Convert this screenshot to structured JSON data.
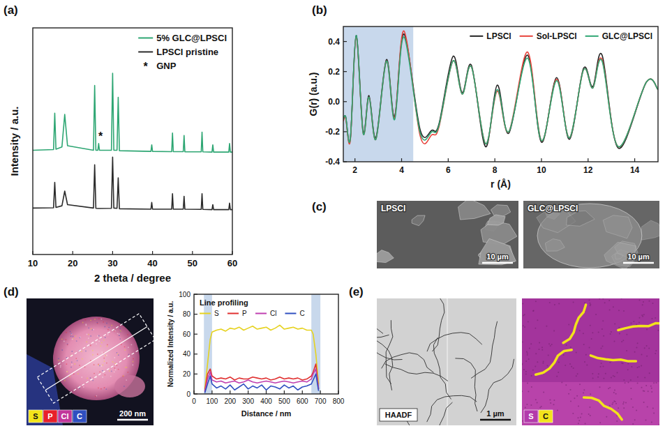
{
  "chart_data": [
    {
      "panel_label": "(a)",
      "type": "line",
      "x_label": "2 theta / degree",
      "y_label": "Intensity / a.u.",
      "xlim": [
        10,
        60
      ],
      "ylim": [
        0,
        100
      ],
      "xticks": [
        10,
        20,
        30,
        40,
        50,
        60
      ],
      "tick_labels": "x",
      "grid": false,
      "legend": "upper right",
      "line_style": "solid",
      "x": [
        10,
        15.2,
        15.5,
        15.8,
        17.3,
        18.0,
        18.7,
        25.2,
        25.5,
        25.8,
        26.3,
        26.5,
        26.7,
        29.7,
        30.0,
        30.3,
        31.1,
        31.4,
        31.7,
        39.6,
        39.8,
        40.0,
        44.8,
        45.0,
        45.2,
        47.7,
        47.9,
        48.1,
        52.2,
        52.4,
        52.6,
        54.9,
        55.1,
        55.3,
        59.1,
        59.3,
        59.5,
        60
      ],
      "series": [
        {
          "name": "5% GLC@LPSCl",
          "color": "#2ea673",
          "values": [
            46,
            46.3,
            62.4,
            46.5,
            47.5,
            61.8,
            48,
            46,
            74.6,
            46,
            46,
            49,
            46,
            46,
            80,
            46,
            46,
            69.4,
            45.8,
            45.5,
            48.4,
            45.5,
            45.4,
            53.6,
            45.4,
            45.4,
            52.5,
            45.3,
            45.3,
            54,
            45.3,
            45.2,
            48.4,
            45.2,
            45.2,
            49,
            45.2,
            45.2
          ]
        },
        {
          "name": "LPSCl pristine",
          "color": "#2b2b2b",
          "values": [
            20.5,
            20.6,
            31.8,
            20.8,
            21.5,
            28,
            22,
            20.5,
            39.6,
            20.4,
            20.3,
            20.3,
            20.3,
            20.4,
            43,
            20.5,
            20.4,
            33.8,
            20.2,
            20,
            23,
            20,
            20,
            26.8,
            20,
            20,
            25.7,
            20,
            19.9,
            26.8,
            19.9,
            19.8,
            22,
            19.8,
            19.8,
            22.7,
            19.8,
            19.8
          ]
        }
      ],
      "legend_note": {
        "symbol": "*",
        "text": "GNP"
      },
      "annotations": [
        {
          "text": "*",
          "x": 27.0,
          "y": 50.5
        }
      ]
    },
    {
      "panel_label": "(b)",
      "type": "line",
      "x_label": "r (Å)",
      "y_label": "G(r) (a.u.)",
      "xlim": [
        1.5,
        15
      ],
      "ylim": [
        -0.4,
        0.5
      ],
      "xticks": [
        2,
        4,
        6,
        8,
        10,
        12,
        14
      ],
      "yticks": [
        -0.4,
        -0.2,
        {
          "value": 0,
          "label": "0.0"
        },
        0.2,
        0.4
      ],
      "grid": false,
      "legend": "top right",
      "line_style": "smooth",
      "shaded_ranges": [
        [
          1.5,
          4.5
        ]
      ],
      "x": [
        1.5,
        1.6,
        1.8,
        2.05,
        2.35,
        2.6,
        2.9,
        3.35,
        3.7,
        4.1,
        4.8,
        5.3,
        5.6,
        6.2,
        6.6,
        7.0,
        7.6,
        8.1,
        8.6,
        9.4,
        10.0,
        10.65,
        11.2,
        11.8,
        12.2,
        12.6,
        13.3,
        14.5,
        15
      ],
      "series": [
        {
          "name": "LPSCl",
          "color": "#222222",
          "values": [
            -0.12,
            -0.1,
            -0.25,
            0.44,
            -0.2,
            0.04,
            -0.24,
            0.28,
            -0.1,
            0.45,
            -0.19,
            -0.19,
            -0.15,
            0.3,
            0.06,
            0.24,
            -0.3,
            0.11,
            -0.21,
            0.31,
            -0.27,
            0.16,
            -0.25,
            0.22,
            0.1,
            0.31,
            -0.31,
            0.13,
            0.08
          ]
        },
        {
          "name": "Sol-LPSCl",
          "color": "#e8423a",
          "values": [
            -0.13,
            -0.11,
            -0.26,
            0.43,
            -0.21,
            0.03,
            -0.25,
            0.27,
            -0.11,
            0.47,
            -0.23,
            -0.22,
            -0.17,
            0.27,
            0.05,
            0.23,
            -0.28,
            0.07,
            -0.2,
            0.33,
            -0.26,
            0.15,
            -0.24,
            0.21,
            0.09,
            0.28,
            -0.3,
            0.13,
            0.08
          ]
        },
        {
          "name": "GLC@LPSCl",
          "color": "#2ea673",
          "values": [
            -0.12,
            -0.1,
            -0.25,
            0.44,
            -0.21,
            0.03,
            -0.25,
            0.27,
            -0.12,
            0.43,
            -0.21,
            -0.2,
            -0.16,
            0.27,
            0.05,
            0.23,
            -0.28,
            0.08,
            -0.2,
            0.29,
            -0.26,
            0.14,
            -0.24,
            0.21,
            0.09,
            0.27,
            -0.3,
            0.13,
            0.08
          ]
        }
      ]
    },
    {
      "type": "line",
      "x_label": "Distance / nm",
      "y_label": "Normalized Intensity / a.u.",
      "xlim": [
        0,
        800
      ],
      "ylim": [
        0,
        100
      ],
      "xticks": [
        0,
        100,
        200,
        300,
        400,
        500,
        600,
        700,
        800
      ],
      "yticks": [
        0,
        20,
        40,
        60,
        80,
        100
      ],
      "grid": false,
      "legend": "top left",
      "legend_title": "Line profiling",
      "line_style": "solid",
      "shaded_ranges": [
        [
          55,
          100
        ],
        [
          650,
          700
        ]
      ],
      "x": [
        60,
        75,
        90,
        100,
        125,
        150,
        175,
        200,
        225,
        250,
        275,
        300,
        325,
        350,
        375,
        400,
        425,
        450,
        475,
        500,
        525,
        550,
        575,
        600,
        625,
        650,
        660,
        675,
        690
      ],
      "series": [
        {
          "name": "S",
          "color": "#e6d21e",
          "values": [
            5,
            30,
            55,
            62,
            64,
            65,
            63,
            66,
            65,
            67,
            64,
            66,
            68,
            65,
            66,
            67,
            64,
            66,
            69,
            65,
            66,
            67,
            65,
            66,
            64,
            64,
            60,
            40,
            10
          ]
        },
        {
          "name": "P",
          "color": "#e03030",
          "values": [
            3,
            20,
            25,
            18,
            15,
            16,
            15,
            17,
            14,
            16,
            15,
            15,
            17,
            16,
            15,
            16,
            14,
            15,
            17,
            15,
            16,
            15,
            16,
            14,
            15,
            18,
            22,
            30,
            5
          ]
        },
        {
          "name": "Cl",
          "color": "#c040b0",
          "values": [
            2,
            15,
            22,
            14,
            12,
            13,
            11,
            12,
            13,
            11,
            12,
            14,
            12,
            11,
            12,
            13,
            12,
            11,
            12,
            13,
            12,
            11,
            12,
            13,
            12,
            15,
            20,
            25,
            5
          ]
        },
        {
          "name": "C",
          "color": "#3050c0",
          "values": [
            1,
            10,
            18,
            10,
            6,
            8,
            5,
            9,
            4,
            7,
            10,
            5,
            8,
            6,
            9,
            4,
            8,
            7,
            5,
            9,
            6,
            8,
            4,
            7,
            8,
            10,
            14,
            20,
            3
          ]
        }
      ]
    }
  ],
  "micrographs": {
    "c": {
      "panel_label": "(c)",
      "images": [
        {
          "label": "LPSCl",
          "scale_bar": "10 µm"
        },
        {
          "label": "GLC@LPSCl",
          "scale_bar": "10 µm"
        }
      ]
    },
    "d": {
      "panel_label": "(d)",
      "scale_bar": "200 nm",
      "elements": [
        {
          "symbol": "S",
          "color": "#f2e41a"
        },
        {
          "symbol": "P",
          "color": "#e8202a"
        },
        {
          "symbol": "Cl",
          "color": "#c2369b"
        },
        {
          "symbol": "C",
          "color": "#2f4fc0"
        }
      ]
    },
    "e": {
      "panel_label": "(e)",
      "label": "HAADF",
      "scale_bar": "1 µm",
      "elements": [
        {
          "symbol": "S",
          "color": "#b33aab"
        },
        {
          "symbol": "C",
          "color": "#f2e21c"
        }
      ]
    }
  }
}
